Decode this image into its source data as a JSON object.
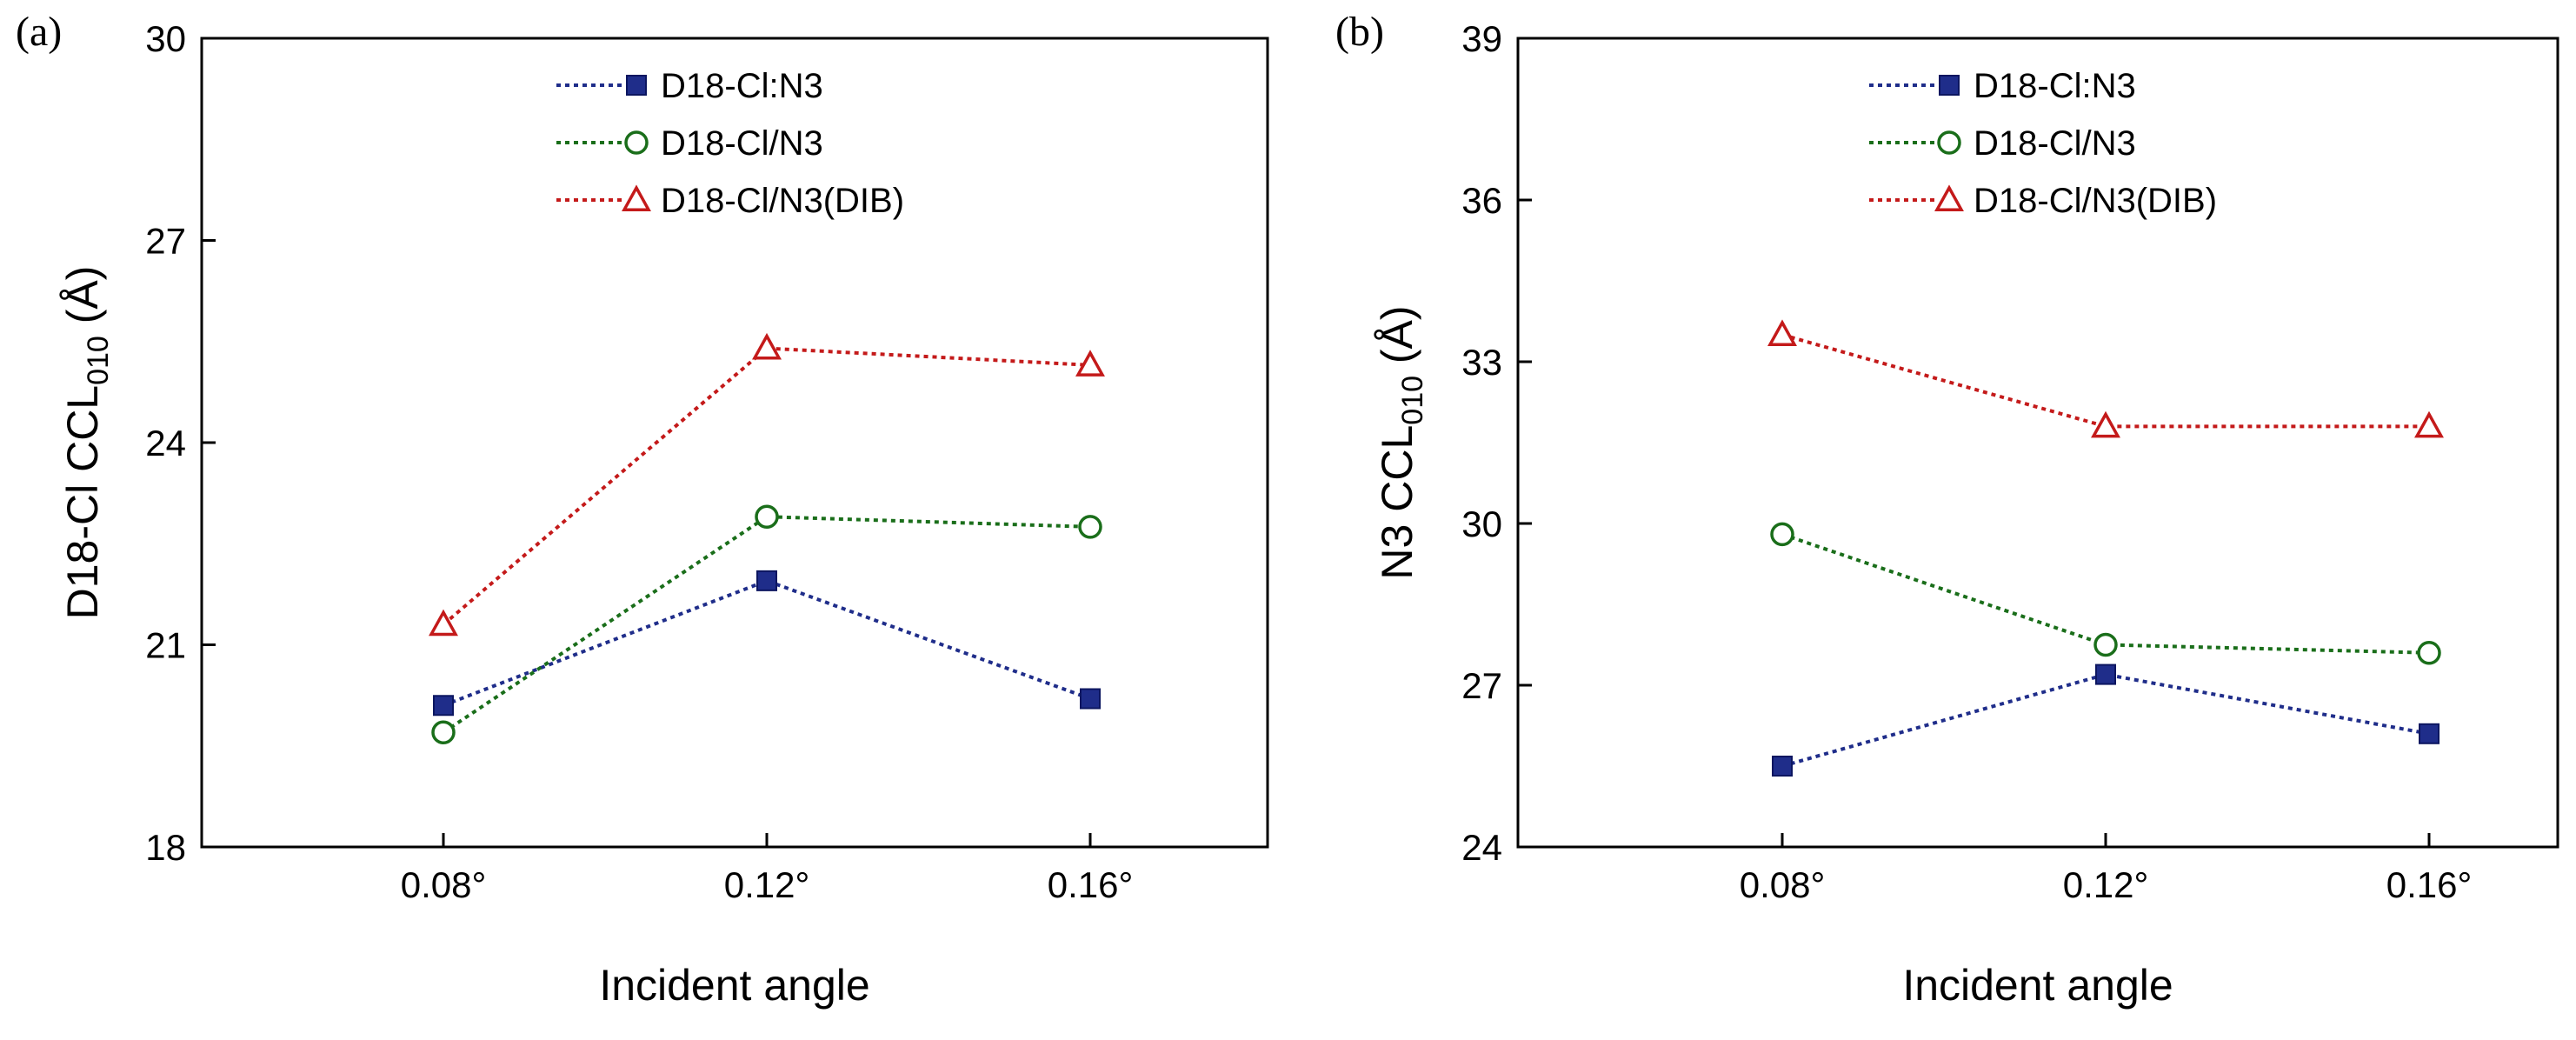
{
  "chart_data": [
    {
      "panel": "(a)",
      "type": "line",
      "categories": [
        "0.08°",
        "0.12°",
        "0.16°"
      ],
      "xlabel": "Incident angle",
      "ylabel_main": "D18-Cl CCL",
      "ylabel_sub": "010",
      "ylabel_unit": " (Å)",
      "ylim": [
        18,
        30
      ],
      "yticks": [
        18,
        21,
        24,
        27,
        30
      ],
      "grid": false,
      "legend_position": "top-center",
      "series": [
        {
          "name": "D18-Cl:N3",
          "marker": "square",
          "color": "#1f2d8a",
          "values": [
            20.1,
            21.95,
            20.2
          ]
        },
        {
          "name": "D18-Cl/N3",
          "marker": "circle-open",
          "color": "#1a6e1a",
          "values": [
            19.7,
            22.9,
            22.75
          ]
        },
        {
          "name": "D18-Cl/N3(DIB)",
          "marker": "triangle-open",
          "color": "#c41a1a",
          "values": [
            21.3,
            25.4,
            25.15
          ]
        }
      ]
    },
    {
      "panel": "(b)",
      "type": "line",
      "categories": [
        "0.08°",
        "0.12°",
        "0.16°"
      ],
      "xlabel": "Incident angle",
      "ylabel_main": "N3 CCL",
      "ylabel_sub": "010",
      "ylabel_unit": " (Å)",
      "ylim": [
        24,
        39
      ],
      "yticks": [
        24,
        27,
        30,
        33,
        36,
        39
      ],
      "grid": false,
      "legend_position": "top-right",
      "series": [
        {
          "name": "D18-Cl:N3",
          "marker": "square",
          "color": "#1f2d8a",
          "values": [
            25.5,
            27.2,
            26.1
          ]
        },
        {
          "name": "D18-Cl/N3",
          "marker": "circle-open",
          "color": "#1a6e1a",
          "values": [
            29.8,
            27.75,
            27.6
          ]
        },
        {
          "name": "D18-Cl/N3(DIB)",
          "marker": "triangle-open",
          "color": "#c41a1a",
          "values": [
            33.5,
            31.8,
            31.8
          ]
        }
      ]
    }
  ]
}
